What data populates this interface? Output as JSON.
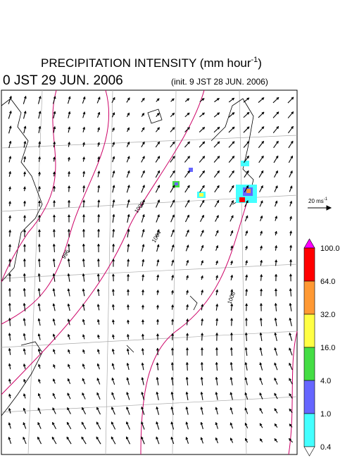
{
  "header": {
    "title": {
      "text": "PRECIPITATION INTENSITY (mm hour",
      "superscript": "-1",
      "suffix": ")"
    },
    "valid_time": "0 JST 29 JUN. 2006",
    "init_time": "(init. 9 JST 28 JUN. 2006)"
  },
  "wind_scale": {
    "text": "20 ms",
    "superscript": "-1"
  },
  "contour_labels": [
    "1000",
    "1004",
    "996",
    "1008"
  ],
  "colorbar": {
    "levels": [
      "100.0",
      "64.0",
      "32.0",
      "16.0",
      "4.0",
      "1.0",
      "0.4"
    ],
    "colors": [
      "#ff00ff",
      "#ff0000",
      "#ff9933",
      "#ffff44",
      "#44dd44",
      "#6666ff",
      "#44ffff",
      "#ffffff"
    ]
  }
}
